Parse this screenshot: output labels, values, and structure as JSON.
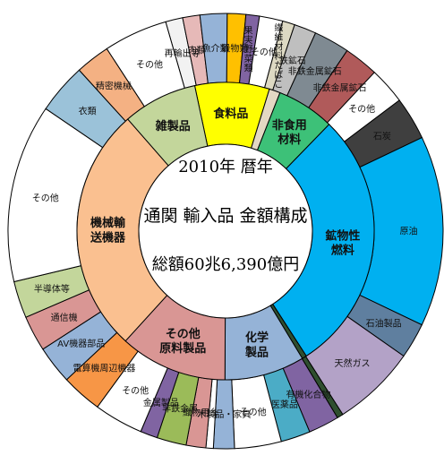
{
  "chart_data": {
    "type": "pie",
    "title_lines": [
      "2010年 暦年",
      "通関 輸入品 金額構成",
      "総額60兆6,390億円"
    ],
    "inner": [
      {
        "label": "食料品",
        "share": 8.1,
        "color": "#FFFF00"
      },
      {
        "label": "",
        "share": 1.2,
        "color": "#E3D8C3"
      },
      {
        "label": "非食用\n材料",
        "share": 6.3,
        "color": "#3DC178"
      },
      {
        "label": "鉱物性\n燃料",
        "share": 28.6,
        "color": "#00B0F0"
      },
      {
        "label": "",
        "share": 0.5,
        "color": "#2F4F2F"
      },
      {
        "label": "化学\n製品",
        "share": 8.7,
        "color": "#95B3D7"
      },
      {
        "label": "その他\n原料製品",
        "share": 11.7,
        "color": "#D99694"
      },
      {
        "label": "機械輸\n送機器",
        "share": 26.8,
        "color": "#FAC090"
      },
      {
        "label": "雑製品",
        "share": 8.1,
        "color": "#C3D69B"
      }
    ],
    "outer": [
      {
        "label": "再輸出等",
        "share": 1.4,
        "color": "#F2F2F2"
      },
      {
        "label": "肉類",
        "share": 1.4,
        "color": "#E6B9B8"
      },
      {
        "label": "魚介類",
        "share": 2.2,
        "color": "#95B3D7"
      },
      {
        "label": "穀物類",
        "share": 1.5,
        "color": "#FFC000"
      },
      {
        "label": "果実野菜類",
        "share": 1.1,
        "color": "#8064A2"
      },
      {
        "label": "その他",
        "share": 1.9,
        "color": "#FFFFFF"
      },
      {
        "label": "繊維材料たばこ",
        "share": 1.0,
        "color": "#DDD9C3"
      },
      {
        "label": "鉄鉱石",
        "share": 1.8,
        "color": "#BFBFBF"
      },
      {
        "label": "非鉄金属鉱石",
        "share": 2.9,
        "color": "#7F8A92"
      },
      {
        "label": "非鉄金属鉱石",
        "share": 2.8,
        "color": "#B05A5A"
      },
      {
        "label": "その他",
        "share": 3.0,
        "color": "#FFFFFF"
      },
      {
        "label": "石炭",
        "share": 3.5,
        "color": "#3F3F3F"
      },
      {
        "label": "原油",
        "share": 15.5,
        "color": "#00B0F0"
      },
      {
        "label": "石油製品",
        "share": 2.9,
        "color": "#5F7F9F"
      },
      {
        "label": "天然ガス",
        "share": 6.8,
        "color": "#B3A2C7"
      },
      {
        "label": "",
        "share": 0.5,
        "color": "#2F4F2F"
      },
      {
        "label": "有機化合物",
        "share": 2.5,
        "color": "#8064A2"
      },
      {
        "label": "医薬品",
        "share": 2.4,
        "color": "#4BACC6"
      },
      {
        "label": "その他",
        "share": 3.8,
        "color": "#FFFFFF"
      },
      {
        "label": "木製品・家具",
        "share": 1.7,
        "color": "#95B3D7"
      },
      {
        "label": "",
        "share": 0.6,
        "color": "#FFFFFF"
      },
      {
        "label": "織物用糸",
        "share": 1.6,
        "color": "#D99694"
      },
      {
        "label": "非鉄金属",
        "share": 2.4,
        "color": "#9BBB59"
      },
      {
        "label": "金属製品",
        "share": 1.4,
        "color": "#8064A2"
      },
      {
        "label": "その他",
        "share": 4.0,
        "color": "#FFFFFF"
      },
      {
        "label": "電算機周辺機器",
        "share": 3.3,
        "color": "#F79646"
      },
      {
        "label": "AV機器部品",
        "share": 3.1,
        "color": "#95B3D7"
      },
      {
        "label": "通信機",
        "share": 2.9,
        "color": "#D99694"
      },
      {
        "label": "半導体等",
        "share": 3.0,
        "color": "#C3D69B"
      },
      {
        "label": "その他",
        "share": 14.5,
        "color": "#FFFFFF"
      },
      {
        "label": "衣類",
        "share": 4.1,
        "color": "#9BC2D9"
      },
      {
        "label": "精密機械",
        "share": 2.8,
        "color": "#F4B183"
      },
      {
        "label": "その他",
        "share": 5.2,
        "color": "#FFFFFF"
      }
    ]
  }
}
